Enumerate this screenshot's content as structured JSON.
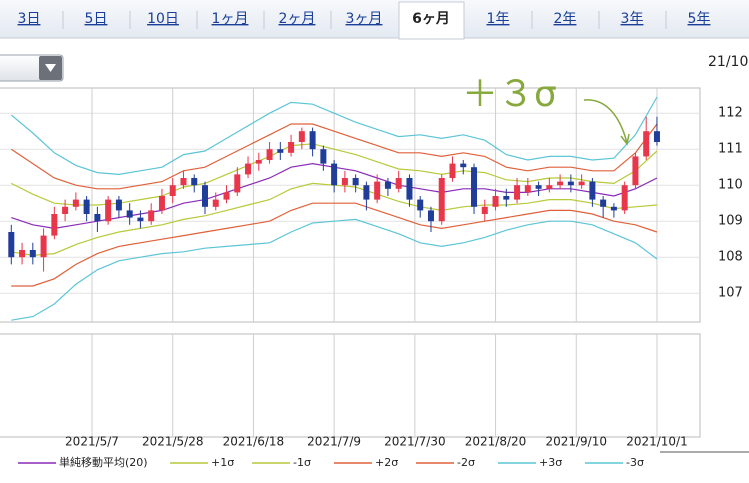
{
  "tabs": [
    "3日",
    "5日",
    "10日",
    "1ヶ月",
    "2ヶ月",
    "3ヶ月",
    "6ヶ月",
    "1年",
    "2年",
    "3年",
    "5年"
  ],
  "active_tab": 6,
  "corner_label": "21/10",
  "chart_data": {
    "type": "candlestick",
    "annotation": "＋３σ",
    "xlim": [
      -2.1,
      128
    ],
    "xticks": [
      {
        "value": 15,
        "label": "2021/5/7"
      },
      {
        "value": 30,
        "label": "2021/5/28"
      },
      {
        "value": 45,
        "label": "2021/6/18"
      },
      {
        "value": 60,
        "label": "2021/7/9"
      },
      {
        "value": 75,
        "label": "2021/7/30"
      },
      {
        "value": 90,
        "label": "2021/8/20"
      },
      {
        "value": 105,
        "label": "2021/9/10"
      },
      {
        "value": 120,
        "label": "2021/10/1"
      }
    ],
    "ylim": [
      106.2,
      112.7
    ],
    "yticks": [
      107,
      108,
      109,
      110,
      111,
      112
    ],
    "grid": true,
    "up_color": "#e8364a",
    "down_color": "#1f3d99",
    "candles": {
      "x": [
        0,
        2,
        4,
        6,
        8,
        10,
        12,
        14,
        16,
        18,
        20,
        22,
        24,
        26,
        28,
        30,
        32,
        34,
        36,
        38,
        40,
        42,
        44,
        46,
        48,
        50,
        52,
        54,
        56,
        58,
        60,
        62,
        64,
        66,
        68,
        70,
        72,
        74,
        76,
        78,
        80,
        82,
        84,
        86,
        88,
        90,
        92,
        94,
        96,
        98,
        100,
        102,
        104,
        106,
        108,
        110,
        112,
        114,
        116,
        118,
        120
      ],
      "open": [
        108.7,
        108.0,
        108.2,
        108.0,
        108.6,
        109.2,
        109.4,
        109.6,
        109.2,
        109.0,
        109.6,
        109.3,
        109.1,
        109.0,
        109.3,
        109.7,
        110.0,
        110.2,
        110.0,
        109.4,
        109.6,
        109.8,
        110.3,
        110.6,
        110.7,
        111.0,
        110.9,
        111.2,
        111.5,
        111.0,
        110.6,
        110.0,
        110.2,
        110.0,
        109.6,
        110.1,
        109.9,
        110.2,
        109.6,
        109.3,
        109.0,
        110.2,
        110.6,
        110.5,
        109.2,
        109.4,
        109.7,
        109.6,
        109.8,
        110.0,
        109.9,
        110.0,
        110.1,
        110.0,
        110.1,
        109.6,
        109.4,
        109.3,
        110.0,
        110.8,
        111.5
      ],
      "high": [
        108.9,
        108.4,
        108.4,
        108.8,
        109.4,
        109.6,
        109.8,
        109.7,
        109.4,
        109.7,
        109.7,
        109.5,
        109.3,
        109.5,
        109.9,
        110.2,
        110.4,
        110.3,
        110.1,
        109.8,
        110.0,
        110.5,
        110.8,
        110.9,
        111.2,
        111.2,
        111.4,
        111.6,
        111.6,
        111.1,
        110.7,
        110.4,
        110.3,
        110.1,
        110.3,
        110.2,
        110.4,
        110.3,
        109.7,
        109.4,
        110.3,
        110.8,
        110.7,
        110.6,
        109.6,
        109.9,
        109.9,
        110.2,
        110.2,
        110.1,
        110.2,
        110.3,
        110.3,
        110.3,
        110.2,
        109.7,
        109.5,
        110.1,
        110.9,
        111.9,
        111.9
      ],
      "low": [
        107.8,
        107.8,
        107.8,
        107.6,
        108.5,
        109.0,
        109.3,
        109.0,
        108.7,
        108.9,
        109.1,
        108.9,
        108.8,
        108.9,
        109.2,
        109.5,
        109.9,
        109.8,
        109.2,
        109.3,
        109.5,
        109.7,
        110.2,
        110.4,
        110.6,
        110.7,
        110.8,
        111.0,
        110.8,
        110.4,
        109.8,
        109.8,
        109.8,
        109.3,
        109.5,
        109.7,
        109.8,
        109.4,
        109.1,
        108.7,
        108.9,
        110.1,
        110.3,
        109.2,
        109.0,
        109.3,
        109.4,
        109.5,
        109.7,
        109.7,
        109.8,
        109.9,
        109.8,
        109.9,
        109.4,
        109.1,
        109.1,
        109.2,
        109.9,
        110.7,
        111.1
      ],
      "close": [
        108.0,
        108.2,
        108.0,
        108.6,
        109.2,
        109.4,
        109.6,
        109.2,
        109.0,
        109.6,
        109.3,
        109.1,
        109.0,
        109.3,
        109.7,
        110.0,
        110.2,
        110.0,
        109.4,
        109.6,
        109.8,
        110.3,
        110.6,
        110.7,
        111.0,
        110.9,
        111.2,
        111.5,
        111.0,
        110.6,
        110.0,
        110.2,
        110.0,
        109.6,
        110.1,
        109.9,
        110.2,
        109.6,
        109.3,
        109.0,
        110.2,
        110.6,
        110.5,
        109.4,
        109.4,
        109.7,
        109.6,
        110.0,
        110.0,
        109.9,
        110.0,
        110.1,
        110.0,
        110.1,
        109.6,
        109.4,
        109.3,
        110.0,
        110.8,
        111.5,
        111.2
      ]
    },
    "band_x": [
      0,
      4,
      8,
      12,
      16,
      20,
      24,
      28,
      32,
      36,
      40,
      44,
      48,
      52,
      56,
      60,
      64,
      68,
      72,
      76,
      80,
      84,
      88,
      92,
      96,
      100,
      104,
      108,
      112,
      116,
      120
    ],
    "series": [
      {
        "name": "単純移動平均(20)",
        "color": "#8a2bb8",
        "values": [
          109.1,
          108.9,
          108.8,
          108.9,
          109.0,
          109.1,
          109.2,
          109.3,
          109.5,
          109.6,
          109.8,
          110.0,
          110.2,
          110.5,
          110.6,
          110.5,
          110.4,
          110.2,
          110.0,
          109.9,
          109.8,
          109.9,
          109.9,
          109.8,
          109.8,
          109.9,
          109.9,
          109.8,
          109.7,
          109.9,
          110.2
        ]
      },
      {
        "name": "+1σ",
        "color": "#b8c93a",
        "values": [
          110.05,
          109.75,
          109.5,
          109.45,
          109.45,
          109.5,
          109.6,
          109.7,
          109.95,
          110.05,
          110.3,
          110.55,
          110.8,
          111.1,
          111.15,
          111.0,
          110.85,
          110.65,
          110.45,
          110.4,
          110.3,
          110.4,
          110.35,
          110.15,
          110.1,
          110.2,
          110.2,
          110.1,
          110.05,
          110.4,
          110.95
        ]
      },
      {
        "name": "-1σ",
        "color": "#b8c93a",
        "values": [
          108.15,
          108.05,
          108.1,
          108.35,
          108.55,
          108.7,
          108.8,
          108.9,
          109.05,
          109.15,
          109.3,
          109.45,
          109.6,
          109.9,
          110.05,
          110.0,
          109.95,
          109.75,
          109.55,
          109.4,
          109.3,
          109.4,
          109.45,
          109.45,
          109.5,
          109.6,
          109.6,
          109.5,
          109.35,
          109.4,
          109.45
        ]
      },
      {
        "name": "+2σ",
        "color": "#e0603a",
        "values": [
          111.0,
          110.6,
          110.2,
          110.0,
          109.9,
          109.9,
          110.0,
          110.1,
          110.4,
          110.5,
          110.8,
          111.1,
          111.4,
          111.7,
          111.7,
          111.5,
          111.3,
          111.1,
          110.9,
          110.9,
          110.8,
          110.9,
          110.8,
          110.5,
          110.4,
          110.5,
          110.5,
          110.4,
          110.4,
          110.9,
          111.7
        ]
      },
      {
        "name": "-2σ",
        "color": "#e0603a",
        "values": [
          107.2,
          107.2,
          107.4,
          107.8,
          108.1,
          108.3,
          108.4,
          108.5,
          108.6,
          108.7,
          108.8,
          108.9,
          109.0,
          109.3,
          109.5,
          109.5,
          109.5,
          109.3,
          109.1,
          108.9,
          108.8,
          108.9,
          109.0,
          109.1,
          109.2,
          109.3,
          109.3,
          109.2,
          109.0,
          108.9,
          108.7
        ]
      },
      {
        "name": "+3σ",
        "color": "#5cc5d6",
        "values": [
          111.95,
          111.45,
          110.9,
          110.55,
          110.35,
          110.3,
          110.4,
          110.5,
          110.85,
          110.95,
          111.3,
          111.65,
          112.0,
          112.3,
          112.25,
          112.0,
          111.75,
          111.55,
          111.35,
          111.4,
          111.3,
          111.4,
          111.25,
          110.85,
          110.7,
          110.8,
          110.8,
          110.7,
          110.75,
          111.4,
          112.45
        ]
      },
      {
        "name": "-3σ",
        "color": "#5cc5d6",
        "values": [
          106.25,
          106.35,
          106.7,
          107.25,
          107.65,
          107.9,
          108.0,
          108.1,
          108.15,
          108.25,
          108.3,
          108.35,
          108.4,
          108.7,
          108.95,
          109.0,
          109.05,
          108.85,
          108.65,
          108.4,
          108.3,
          108.4,
          108.55,
          108.75,
          108.9,
          109.0,
          109.0,
          108.9,
          108.65,
          108.4,
          107.95
        ]
      }
    ]
  }
}
